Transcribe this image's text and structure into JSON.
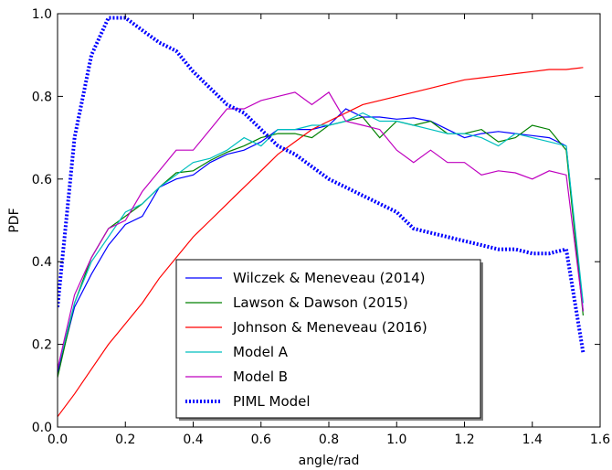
{
  "chart_data": {
    "type": "line",
    "title": "",
    "xlabel": "angle/rad",
    "ylabel": "PDF",
    "xlim": [
      0.0,
      1.6
    ],
    "ylim": [
      0.0,
      1.0
    ],
    "xticks": [
      "0.0",
      "0.2",
      "0.4",
      "0.6",
      "0.8",
      "1.0",
      "1.2",
      "1.4",
      "1.6"
    ],
    "yticks": [
      "0.0",
      "0.2",
      "0.4",
      "0.6",
      "0.8",
      "1.0"
    ],
    "grid": false,
    "legend_position": "bottom-center",
    "series": [
      {
        "name": "Wilczek & Meneveau (2014)",
        "color": "#0000ff",
        "style": "solid",
        "points": [
          [
            0.0,
            0.13
          ],
          [
            0.05,
            0.29
          ],
          [
            0.1,
            0.37
          ],
          [
            0.15,
            0.44
          ],
          [
            0.2,
            0.49
          ],
          [
            0.25,
            0.51
          ],
          [
            0.3,
            0.58
          ],
          [
            0.35,
            0.6
          ],
          [
            0.4,
            0.61
          ],
          [
            0.45,
            0.64
          ],
          [
            0.5,
            0.66
          ],
          [
            0.55,
            0.67
          ],
          [
            0.6,
            0.69
          ],
          [
            0.65,
            0.72
          ],
          [
            0.7,
            0.72
          ],
          [
            0.75,
            0.72
          ],
          [
            0.8,
            0.73
          ],
          [
            0.85,
            0.77
          ],
          [
            0.9,
            0.75
          ],
          [
            0.95,
            0.75
          ],
          [
            1.0,
            0.745
          ],
          [
            1.05,
            0.748
          ],
          [
            1.1,
            0.74
          ],
          [
            1.15,
            0.72
          ],
          [
            1.2,
            0.7
          ],
          [
            1.25,
            0.71
          ],
          [
            1.3,
            0.715
          ],
          [
            1.35,
            0.71
          ],
          [
            1.4,
            0.705
          ],
          [
            1.45,
            0.7
          ],
          [
            1.5,
            0.68
          ],
          [
            1.55,
            0.28
          ]
        ]
      },
      {
        "name": "Lawson & Dawson (2015)",
        "color": "#008000",
        "style": "solid",
        "points": [
          [
            0.0,
            0.12
          ],
          [
            0.05,
            0.3
          ],
          [
            0.1,
            0.41
          ],
          [
            0.15,
            0.48
          ],
          [
            0.2,
            0.51
          ],
          [
            0.25,
            0.54
          ],
          [
            0.3,
            0.58
          ],
          [
            0.35,
            0.615
          ],
          [
            0.4,
            0.62
          ],
          [
            0.45,
            0.645
          ],
          [
            0.5,
            0.665
          ],
          [
            0.55,
            0.68
          ],
          [
            0.6,
            0.7
          ],
          [
            0.65,
            0.71
          ],
          [
            0.7,
            0.71
          ],
          [
            0.75,
            0.7
          ],
          [
            0.8,
            0.73
          ],
          [
            0.85,
            0.74
          ],
          [
            0.9,
            0.75
          ],
          [
            0.95,
            0.7
          ],
          [
            1.0,
            0.74
          ],
          [
            1.05,
            0.73
          ],
          [
            1.1,
            0.74
          ],
          [
            1.15,
            0.71
          ],
          [
            1.2,
            0.71
          ],
          [
            1.25,
            0.72
          ],
          [
            1.3,
            0.69
          ],
          [
            1.35,
            0.7
          ],
          [
            1.4,
            0.73
          ],
          [
            1.45,
            0.72
          ],
          [
            1.5,
            0.67
          ],
          [
            1.55,
            0.27
          ]
        ]
      },
      {
        "name": "Johnson & Meneveau (2016)",
        "color": "#ff0000",
        "style": "solid",
        "points": [
          [
            0.0,
            0.025
          ],
          [
            0.05,
            0.08
          ],
          [
            0.1,
            0.14
          ],
          [
            0.15,
            0.2
          ],
          [
            0.2,
            0.25
          ],
          [
            0.25,
            0.3
          ],
          [
            0.3,
            0.36
          ],
          [
            0.35,
            0.41
          ],
          [
            0.4,
            0.46
          ],
          [
            0.45,
            0.5
          ],
          [
            0.5,
            0.54
          ],
          [
            0.55,
            0.58
          ],
          [
            0.6,
            0.62
          ],
          [
            0.65,
            0.66
          ],
          [
            0.7,
            0.69
          ],
          [
            0.75,
            0.72
          ],
          [
            0.8,
            0.74
          ],
          [
            0.85,
            0.76
          ],
          [
            0.9,
            0.78
          ],
          [
            0.95,
            0.79
          ],
          [
            1.0,
            0.8
          ],
          [
            1.05,
            0.81
          ],
          [
            1.1,
            0.82
          ],
          [
            1.15,
            0.83
          ],
          [
            1.2,
            0.84
          ],
          [
            1.25,
            0.845
          ],
          [
            1.3,
            0.85
          ],
          [
            1.35,
            0.855
          ],
          [
            1.4,
            0.86
          ],
          [
            1.45,
            0.865
          ],
          [
            1.5,
            0.865
          ],
          [
            1.55,
            0.87
          ]
        ]
      },
      {
        "name": "Model A",
        "color": "#00bfbf",
        "style": "solid",
        "points": [
          [
            0.0,
            0.14
          ],
          [
            0.05,
            0.3
          ],
          [
            0.1,
            0.4
          ],
          [
            0.15,
            0.46
          ],
          [
            0.2,
            0.52
          ],
          [
            0.25,
            0.54
          ],
          [
            0.3,
            0.58
          ],
          [
            0.35,
            0.61
          ],
          [
            0.4,
            0.64
          ],
          [
            0.45,
            0.65
          ],
          [
            0.5,
            0.67
          ],
          [
            0.55,
            0.7
          ],
          [
            0.6,
            0.68
          ],
          [
            0.65,
            0.72
          ],
          [
            0.7,
            0.72
          ],
          [
            0.75,
            0.73
          ],
          [
            0.8,
            0.73
          ],
          [
            0.85,
            0.74
          ],
          [
            0.9,
            0.76
          ],
          [
            0.95,
            0.74
          ],
          [
            1.0,
            0.74
          ],
          [
            1.05,
            0.73
          ],
          [
            1.1,
            0.72
          ],
          [
            1.15,
            0.71
          ],
          [
            1.2,
            0.71
          ],
          [
            1.25,
            0.7
          ],
          [
            1.3,
            0.68
          ],
          [
            1.35,
            0.71
          ],
          [
            1.4,
            0.7
          ],
          [
            1.45,
            0.69
          ],
          [
            1.5,
            0.68
          ],
          [
            1.55,
            0.3
          ]
        ]
      },
      {
        "name": "Model B",
        "color": "#bf00bf",
        "style": "solid",
        "points": [
          [
            0.0,
            0.14
          ],
          [
            0.05,
            0.32
          ],
          [
            0.1,
            0.41
          ],
          [
            0.15,
            0.48
          ],
          [
            0.2,
            0.5
          ],
          [
            0.25,
            0.57
          ],
          [
            0.3,
            0.62
          ],
          [
            0.35,
            0.67
          ],
          [
            0.4,
            0.67
          ],
          [
            0.45,
            0.72
          ],
          [
            0.5,
            0.77
          ],
          [
            0.55,
            0.77
          ],
          [
            0.6,
            0.79
          ],
          [
            0.65,
            0.8
          ],
          [
            0.7,
            0.81
          ],
          [
            0.75,
            0.78
          ],
          [
            0.8,
            0.81
          ],
          [
            0.85,
            0.74
          ],
          [
            0.9,
            0.73
          ],
          [
            0.95,
            0.72
          ],
          [
            1.0,
            0.67
          ],
          [
            1.05,
            0.64
          ],
          [
            1.1,
            0.67
          ],
          [
            1.15,
            0.64
          ],
          [
            1.2,
            0.64
          ],
          [
            1.25,
            0.61
          ],
          [
            1.3,
            0.62
          ],
          [
            1.35,
            0.615
          ],
          [
            1.4,
            0.6
          ],
          [
            1.45,
            0.62
          ],
          [
            1.5,
            0.61
          ],
          [
            1.55,
            0.28
          ]
        ]
      },
      {
        "name": "PIML Model",
        "color": "#0000ff",
        "style": "dotted",
        "points": [
          [
            0.0,
            0.29
          ],
          [
            0.05,
            0.7
          ],
          [
            0.1,
            0.9
          ],
          [
            0.15,
            0.99
          ],
          [
            0.2,
            0.99
          ],
          [
            0.25,
            0.96
          ],
          [
            0.3,
            0.93
          ],
          [
            0.35,
            0.91
          ],
          [
            0.4,
            0.86
          ],
          [
            0.45,
            0.82
          ],
          [
            0.5,
            0.78
          ],
          [
            0.55,
            0.76
          ],
          [
            0.6,
            0.72
          ],
          [
            0.65,
            0.68
          ],
          [
            0.7,
            0.66
          ],
          [
            0.75,
            0.63
          ],
          [
            0.8,
            0.6
          ],
          [
            0.85,
            0.58
          ],
          [
            0.9,
            0.56
          ],
          [
            0.95,
            0.54
          ],
          [
            1.0,
            0.52
          ],
          [
            1.05,
            0.48
          ],
          [
            1.1,
            0.47
          ],
          [
            1.15,
            0.46
          ],
          [
            1.2,
            0.45
          ],
          [
            1.25,
            0.44
          ],
          [
            1.3,
            0.43
          ],
          [
            1.35,
            0.43
          ],
          [
            1.4,
            0.42
          ],
          [
            1.45,
            0.42
          ],
          [
            1.5,
            0.43
          ],
          [
            1.55,
            0.18
          ]
        ]
      }
    ]
  }
}
